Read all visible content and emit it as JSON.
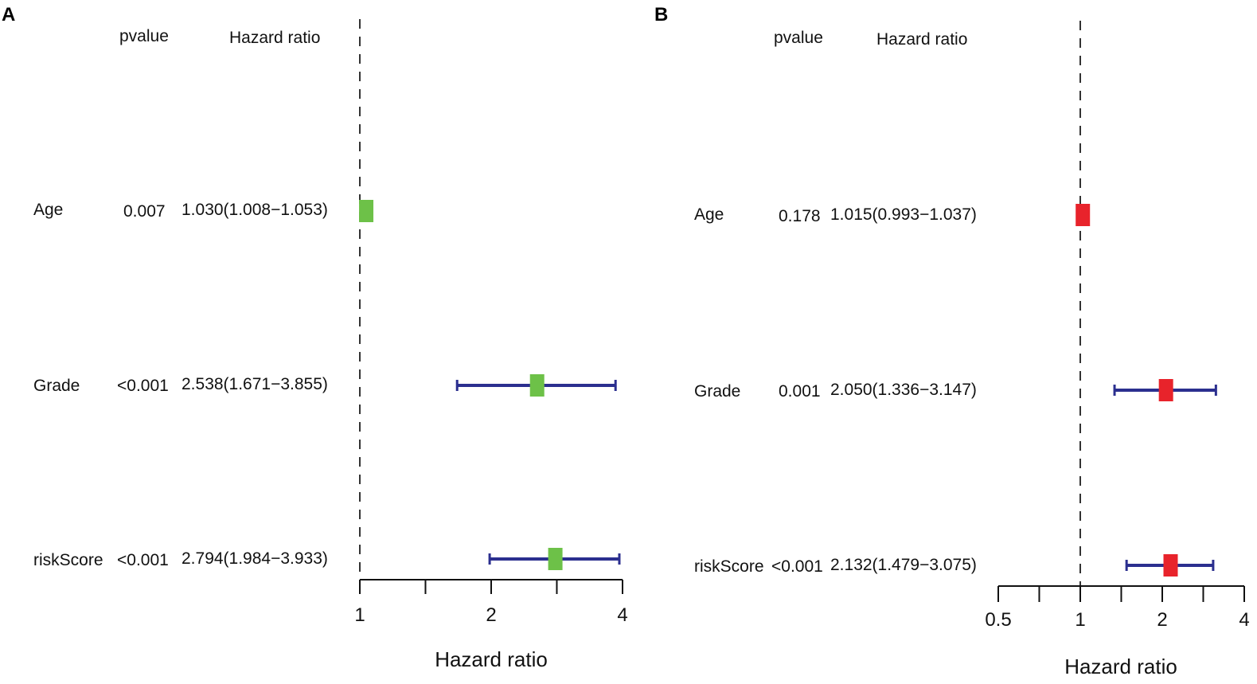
{
  "chart_data": [
    {
      "panel": "A",
      "type": "forest",
      "headers": {
        "pvalue": "pvalue",
        "hazard_ratio": "Hazard ratio"
      },
      "rows": [
        {
          "label": "Age",
          "pvalue": "0.007",
          "hr_text": "1.030(1.008−1.053)",
          "hr": 1.03,
          "lower": 1.008,
          "upper": 1.053
        },
        {
          "label": "Grade",
          "pvalue": "<0.001",
          "hr_text": "2.538(1.671−3.855)",
          "hr": 2.538,
          "lower": 1.671,
          "upper": 3.855
        },
        {
          "label": "riskScore",
          "pvalue": "<0.001",
          "hr_text": "2.794(1.984−3.933)",
          "hr": 2.794,
          "lower": 1.984,
          "upper": 3.933
        }
      ],
      "x_scale": "log",
      "xlim": [
        1,
        4
      ],
      "ticks": [
        1,
        1.414,
        2,
        2.828,
        4
      ],
      "tick_labels": [
        "1",
        "",
        "2",
        "",
        "4"
      ],
      "reference_line": 1,
      "xlabel": "Hazard ratio",
      "marker_color": "#6dc148",
      "line_color": "#2b2f8f"
    },
    {
      "panel": "B",
      "type": "forest",
      "headers": {
        "pvalue": "pvalue",
        "hazard_ratio": "Hazard ratio"
      },
      "rows": [
        {
          "label": "Age",
          "pvalue": "0.178",
          "hr_text": "1.015(0.993−1.037)",
          "hr": 1.015,
          "lower": 0.993,
          "upper": 1.037
        },
        {
          "label": "Grade",
          "pvalue": "0.001",
          "hr_text": "2.050(1.336−3.147)",
          "hr": 2.05,
          "lower": 1.336,
          "upper": 3.147
        },
        {
          "label": "riskScore",
          "pvalue": "<0.001",
          "hr_text": "2.132(1.479−3.075)",
          "hr": 2.132,
          "lower": 1.479,
          "upper": 3.075
        }
      ],
      "x_scale": "log",
      "xlim": [
        0.5,
        4
      ],
      "ticks": [
        0.5,
        0.707,
        1,
        1.414,
        2,
        2.828,
        4
      ],
      "tick_labels": [
        "0.5",
        "",
        "1",
        "",
        "2",
        "",
        "4"
      ],
      "reference_line": 1,
      "xlabel": "Hazard ratio",
      "marker_color": "#e8232b",
      "line_color": "#2b2f8f"
    }
  ]
}
